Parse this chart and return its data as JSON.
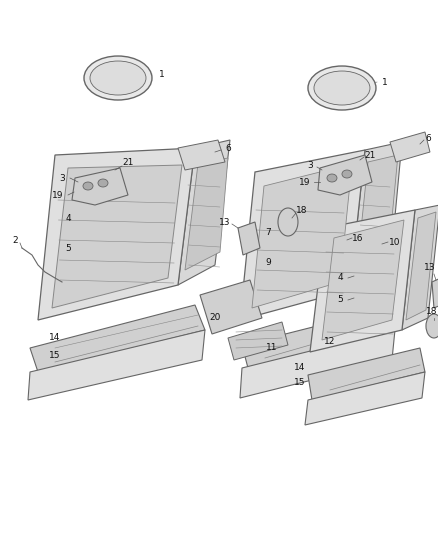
{
  "bg_color": "#ffffff",
  "lc": "#666666",
  "lc2": "#888888",
  "fc_light": "#e0e0e0",
  "fc_mid": "#d0d0d0",
  "fc_dark": "#b8b8b8",
  "fc_spring": "#c0c0c0",
  "label_color": "#111111",
  "fig_width": 4.38,
  "fig_height": 5.33,
  "dpi": 100
}
